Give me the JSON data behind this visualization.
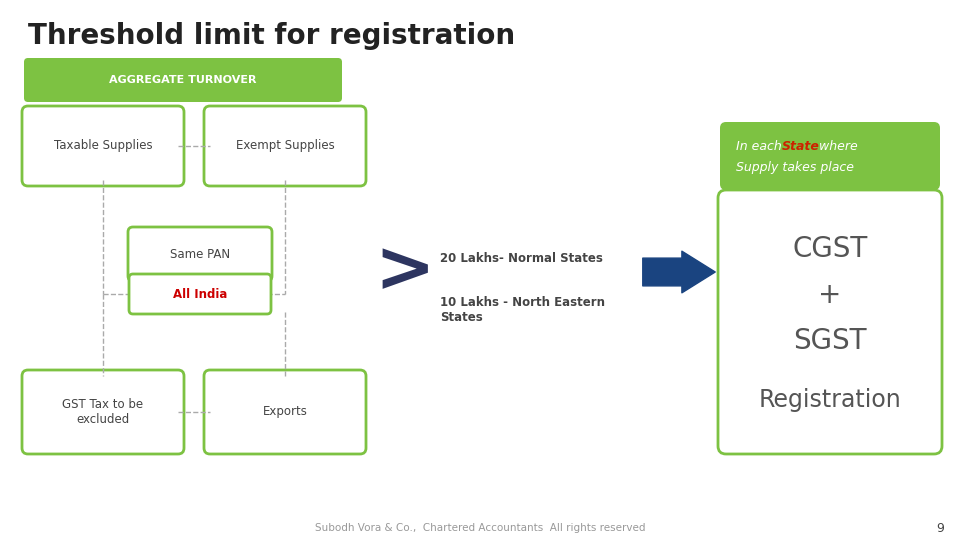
{
  "title": "Threshold limit for registration",
  "title_fontsize": 20,
  "title_color": "#222222",
  "bg_color": "#ffffff",
  "green_color": "#7DC242",
  "dark_text": "#444444",
  "red_text": "#cc0000",
  "blue_arrow": "#1a4480",
  "aggregate_label": "AGGREGATE TURNOVER",
  "box_taxable": "Taxable Supplies",
  "box_exempt": "Exempt Supplies",
  "box_same_pan": "Same PAN",
  "box_all_india": "All India",
  "box_gst": "GST Tax to be\nexcluded",
  "box_exports": "Exports",
  "label_20": "20 Lakhs- Normal States",
  "label_10": "10 Lakhs - North Eastern\nStates",
  "cgst_text": "CGST\n+\nSGST",
  "registration_text": "Registration",
  "footer": "Subodh Vora & Co.,  Chartered Accountants  All rights reserved",
  "page_number": "9"
}
